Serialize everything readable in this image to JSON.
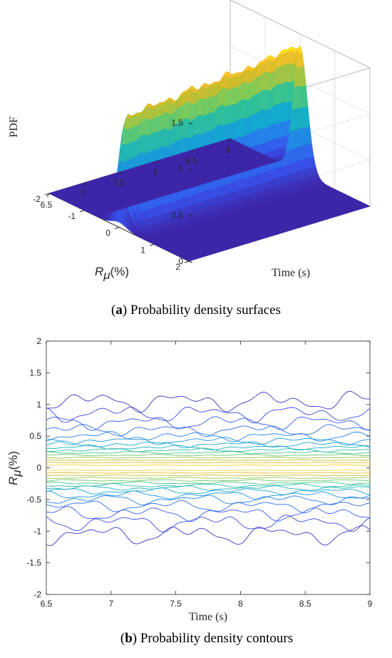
{
  "chart_data": [
    {
      "type": "surface",
      "caption": {
        "label": "a",
        "text": " Probability density surfaces"
      },
      "x": {
        "label": "Time (s)",
        "range": [
          6.5,
          9
        ],
        "ticks": [
          "6.5",
          "7",
          "7.5",
          "8",
          "8.5",
          "9"
        ]
      },
      "y": {
        "label_main": "R",
        "label_sub": "μ",
        "label_unit": "(%)",
        "range": [
          -2,
          2
        ],
        "ticks": [
          "-2",
          "-1",
          "0",
          "1",
          "2"
        ]
      },
      "z": {
        "label": "PDF",
        "range": [
          0,
          1.5
        ],
        "ticks": [
          "0",
          "0.5",
          "1",
          "1.5"
        ]
      },
      "peak_profile": {
        "time": [
          6.5,
          6.75,
          7.0,
          7.25,
          7.5,
          7.75,
          8.0,
          8.25,
          8.5,
          8.75,
          9.0
        ],
        "pdf_at_zero": [
          1.15,
          1.18,
          1.22,
          1.2,
          1.27,
          1.24,
          1.3,
          1.28,
          1.33,
          1.36,
          1.38
        ]
      },
      "spread_sigma": 0.2,
      "colormap": "parula",
      "grid": true
    },
    {
      "type": "contour",
      "caption": {
        "label": "b",
        "text": " Probability density contours"
      },
      "x": {
        "label": "Time (s)",
        "range": [
          6.5,
          9
        ],
        "ticks": [
          "6.5",
          "7",
          "7.5",
          "8",
          "8.5",
          "9"
        ]
      },
      "y": {
        "label_main": "R",
        "label_sub": "μ",
        "label_unit": "(%)",
        "range": [
          -2,
          2
        ],
        "ticks": [
          "2",
          "1.5",
          "1",
          "0.5",
          "0",
          "-0.5",
          "-1",
          "-1.5",
          "-2"
        ]
      },
      "level_offsets_upper": [
        0.04,
        0.08,
        0.12,
        0.16,
        0.2,
        0.24,
        0.28,
        0.32,
        0.37,
        0.43,
        0.5,
        0.6,
        0.72,
        0.86,
        1.05
      ],
      "level_offsets_lower": [
        0.04,
        0.08,
        0.12,
        0.16,
        0.2,
        0.24,
        0.28,
        0.32,
        0.37,
        0.43,
        0.5,
        0.6,
        0.72,
        0.86,
        1.05
      ],
      "colormap": "parula",
      "box": true
    }
  ],
  "colors": {
    "axis": "#262626",
    "grid": "#e6e6e6",
    "dark": "#3d26a8",
    "yellow": "#f9fb0e"
  }
}
